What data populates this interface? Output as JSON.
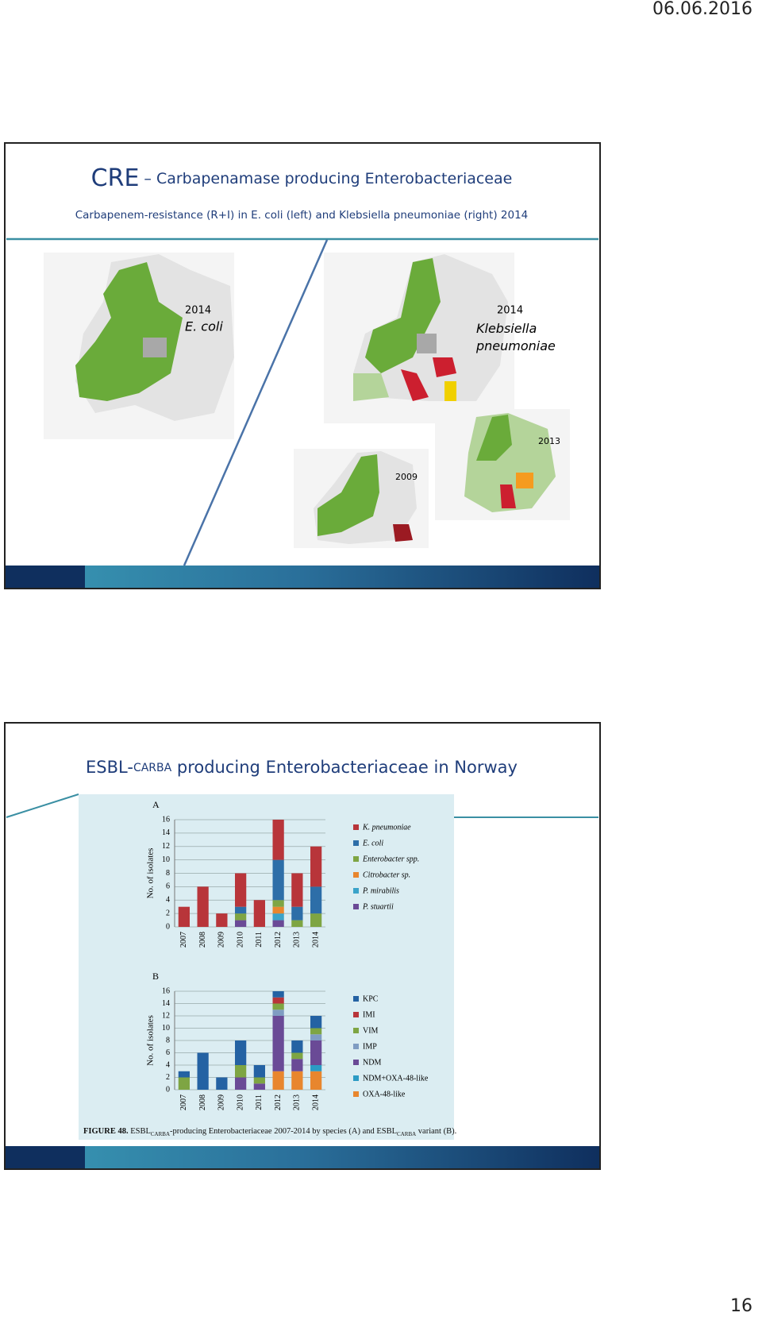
{
  "header": {
    "date": "06.06.2016"
  },
  "slides": [
    {
      "title": "CRE",
      "title_rest": "– Carbapenamase producing Enterobacteriaceae",
      "subtitle": "Carbapenem-resistance (R+I) in E. coli (left) and Klebsiella pneumoniae (right) 2014",
      "maps": [
        {
          "year": "2014",
          "label": "E. coli"
        },
        {
          "year": "2014",
          "label": "Klebsiella pneumoniae"
        },
        {
          "year": "2013"
        },
        {
          "year": "2009"
        }
      ]
    },
    {
      "title_parts": [
        "ESBL-",
        "CARBA",
        " producing Enterobacteriaceae in Norway"
      ],
      "caption_parts": [
        "FIGURE 48.",
        " ESBL",
        "CARBA",
        "-producing Enterobacteriaceae 2007-2014 by species (A) and ESBL",
        "CARBA",
        " variant (B)."
      ]
    }
  ],
  "chart_data": [
    {
      "type": "bar",
      "stacked": true,
      "panel": "A",
      "y_label": "No. of isolates",
      "categories": [
        "2007",
        "2008",
        "2009",
        "2010",
        "2011",
        "2012",
        "2013",
        "2014"
      ],
      "series": [
        {
          "name": "K. pneumoniae",
          "color": "#b8353a",
          "values": [
            3,
            6,
            2,
            5,
            4,
            6,
            5,
            6
          ]
        },
        {
          "name": "E. coli",
          "color": "#2d6ea8",
          "values": [
            0,
            0,
            0,
            1,
            0,
            6,
            2,
            4
          ]
        },
        {
          "name": "Enterobacter spp.",
          "color": "#7ea543",
          "values": [
            0,
            0,
            0,
            1,
            0,
            1,
            1,
            2
          ]
        },
        {
          "name": "Citrobacter sp.",
          "color": "#e8862e",
          "values": [
            0,
            0,
            0,
            0,
            0,
            1,
            0,
            0
          ]
        },
        {
          "name": "P. mirabilis",
          "color": "#3aa3c9",
          "values": [
            0,
            0,
            0,
            0,
            0,
            1,
            0,
            0
          ]
        },
        {
          "name": "P. stuartii",
          "color": "#6a4a96",
          "values": [
            0,
            0,
            0,
            1,
            0,
            1,
            0,
            0
          ]
        }
      ],
      "ylim": [
        0,
        16
      ],
      "yticks": [
        0,
        2,
        4,
        6,
        8,
        10,
        12,
        14,
        16
      ],
      "grid": true
    },
    {
      "type": "bar",
      "stacked": true,
      "panel": "B",
      "y_label": "No. of isolates",
      "categories": [
        "2007",
        "2008",
        "2009",
        "2010",
        "2011",
        "2012",
        "2013",
        "2014"
      ],
      "series": [
        {
          "name": "KPC",
          "color": "#2462a3",
          "values": [
            1,
            6,
            2,
            4,
            2,
            1,
            2,
            2
          ]
        },
        {
          "name": "IMI",
          "color": "#b8353a",
          "values": [
            0,
            0,
            0,
            0,
            0,
            1,
            0,
            0
          ]
        },
        {
          "name": "VIM",
          "color": "#7ea543",
          "values": [
            2,
            0,
            0,
            2,
            1,
            1,
            1,
            1
          ]
        },
        {
          "name": "IMP",
          "color": "#7f9cc2",
          "values": [
            0,
            0,
            0,
            0,
            0,
            1,
            0,
            1
          ]
        },
        {
          "name": "NDM",
          "color": "#6a4a96",
          "values": [
            0,
            0,
            0,
            2,
            1,
            9,
            2,
            4
          ]
        },
        {
          "name": "NDM+OXA-48-like",
          "color": "#2c9bc4",
          "values": [
            0,
            0,
            0,
            0,
            0,
            0,
            0,
            1
          ]
        },
        {
          "name": "OXA-48-like",
          "color": "#e8862e",
          "values": [
            0,
            0,
            0,
            0,
            0,
            3,
            3,
            3
          ]
        }
      ],
      "ylim": [
        0,
        16
      ],
      "yticks": [
        0,
        2,
        4,
        6,
        8,
        10,
        12,
        14,
        16
      ],
      "grid": true
    }
  ],
  "page_number": "16"
}
